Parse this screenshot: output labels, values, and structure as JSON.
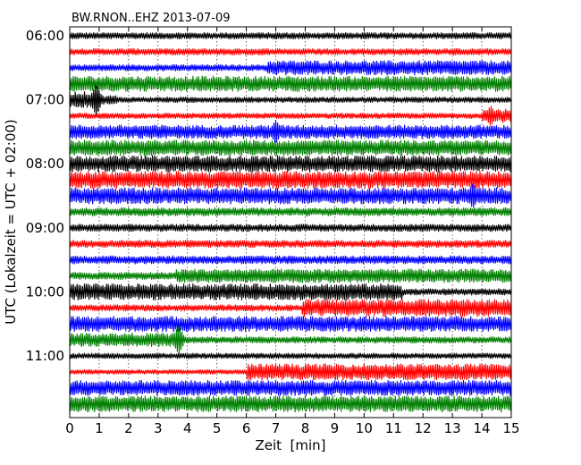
{
  "chart_data": {
    "type": "line",
    "title": "BW.RNON..EHZ 2013-07-09",
    "xlabel": "Zeit  [min]",
    "ylabel": "UTC (Lokalzeit = UTC + 02:00)",
    "xlim": [
      0,
      15
    ],
    "x_ticks": [
      "0",
      "1",
      "2",
      "3",
      "4",
      "5",
      "6",
      "7",
      "8",
      "9",
      "10",
      "11",
      "12",
      "13",
      "14",
      "15"
    ],
    "grid": "vertical dotted",
    "trace_colors": [
      "#000000",
      "#ff0000",
      "#0000ff",
      "#008000"
    ],
    "y_ticks": [
      {
        "label": "06:00",
        "row": 0
      },
      {
        "label": "07:00",
        "row": 4
      },
      {
        "label": "08:00",
        "row": 8
      },
      {
        "label": "09:00",
        "row": 12
      },
      {
        "label": "10:00",
        "row": 16
      },
      {
        "label": "11:00",
        "row": 20
      }
    ],
    "rows": [
      {
        "t": "06:00",
        "segments": [
          [
            0,
            15,
            0.35
          ]
        ]
      },
      {
        "t": "06:15",
        "segments": [
          [
            0,
            15,
            0.35
          ]
        ]
      },
      {
        "t": "06:30",
        "segments": [
          [
            0,
            6.7,
            0.35
          ],
          [
            6.7,
            15,
            0.8
          ]
        ]
      },
      {
        "t": "06:45",
        "segments": [
          [
            0,
            15,
            0.85
          ]
        ]
      },
      {
        "t": "07:00",
        "segments": [
          [
            0,
            1.0,
            0.9
          ],
          [
            1.0,
            1.6,
            0.5
          ],
          [
            1.6,
            15,
            0.3
          ]
        ],
        "spikes": [
          [
            0.9,
            1.8
          ]
        ]
      },
      {
        "t": "07:15",
        "segments": [
          [
            0,
            14.0,
            0.3
          ],
          [
            14.0,
            15,
            0.75
          ]
        ],
        "spikes": [
          [
            14.3,
            1.1
          ]
        ]
      },
      {
        "t": "07:30",
        "segments": [
          [
            0,
            15,
            0.75
          ]
        ],
        "spikes": [
          [
            7.0,
            1.3
          ]
        ]
      },
      {
        "t": "07:45",
        "segments": [
          [
            0,
            15,
            0.85
          ]
        ]
      },
      {
        "t": "08:00",
        "segments": [
          [
            0,
            15,
            0.9
          ]
        ]
      },
      {
        "t": "08:15",
        "segments": [
          [
            0,
            15,
            0.95
          ]
        ]
      },
      {
        "t": "08:30",
        "segments": [
          [
            0,
            15,
            0.9
          ]
        ],
        "spikes": [
          [
            13.7,
            1.4
          ]
        ]
      },
      {
        "t": "08:45",
        "segments": [
          [
            0,
            15,
            0.45
          ]
        ]
      },
      {
        "t": "09:00",
        "segments": [
          [
            0,
            15,
            0.4
          ]
        ]
      },
      {
        "t": "09:15",
        "segments": [
          [
            0,
            15,
            0.4
          ]
        ]
      },
      {
        "t": "09:30",
        "segments": [
          [
            0,
            15,
            0.45
          ]
        ]
      },
      {
        "t": "09:45",
        "segments": [
          [
            0,
            3.6,
            0.4
          ],
          [
            3.6,
            15,
            0.75
          ]
        ]
      },
      {
        "t": "10:00",
        "segments": [
          [
            0,
            11.3,
            0.9
          ],
          [
            11.3,
            15,
            0.35
          ]
        ]
      },
      {
        "t": "10:15",
        "segments": [
          [
            0,
            7.9,
            0.35
          ],
          [
            7.9,
            15,
            0.95
          ]
        ]
      },
      {
        "t": "10:30",
        "segments": [
          [
            0,
            15,
            0.85
          ]
        ]
      },
      {
        "t": "10:45",
        "segments": [
          [
            0,
            3.7,
            0.75
          ],
          [
            3.7,
            15,
            0.35
          ]
        ],
        "spikes": [
          [
            3.7,
            1.6
          ]
        ]
      },
      {
        "t": "11:00",
        "segments": [
          [
            0,
            15,
            0.3
          ]
        ]
      },
      {
        "t": "11:15",
        "segments": [
          [
            0,
            6.0,
            0.25
          ],
          [
            6.0,
            15,
            0.9
          ]
        ]
      },
      {
        "t": "11:30",
        "segments": [
          [
            0,
            15,
            0.85
          ]
        ]
      },
      {
        "t": "11:45",
        "segments": [
          [
            0,
            15,
            0.9
          ]
        ]
      }
    ]
  }
}
